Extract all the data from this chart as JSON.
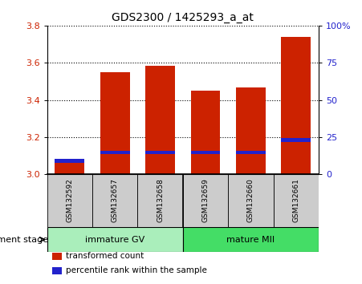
{
  "title": "GDS2300 / 1425293_a_at",
  "samples": [
    "GSM132592",
    "GSM132657",
    "GSM132658",
    "GSM132659",
    "GSM132660",
    "GSM132661"
  ],
  "red_values": [
    3.07,
    3.55,
    3.585,
    3.45,
    3.468,
    3.74
  ],
  "blue_bottoms": [
    3.063,
    3.108,
    3.108,
    3.108,
    3.108,
    3.175
  ],
  "blue_heights": [
    0.018,
    0.018,
    0.018,
    0.018,
    0.018,
    0.022
  ],
  "ymin": 3.0,
  "ymax": 3.8,
  "yticks_left": [
    3.0,
    3.2,
    3.4,
    3.6,
    3.8
  ],
  "yticks_right": [
    0,
    25,
    50,
    75,
    100
  ],
  "bar_color": "#CC2200",
  "blue_color": "#2222CC",
  "bar_width": 0.65,
  "groups": [
    {
      "label": "immature GV",
      "indices": [
        0,
        1,
        2
      ],
      "color": "#AAEEBB"
    },
    {
      "label": "mature MII",
      "indices": [
        3,
        4,
        5
      ],
      "color": "#44DD66"
    }
  ],
  "xlabel": "development stage",
  "legend": [
    {
      "label": "transformed count",
      "color": "#CC2200"
    },
    {
      "label": "percentile rank within the sample",
      "color": "#2222CC"
    }
  ],
  "plot_bg": "#FFFFFF",
  "label_bg": "#CCCCCC",
  "grid_color": "#000000"
}
